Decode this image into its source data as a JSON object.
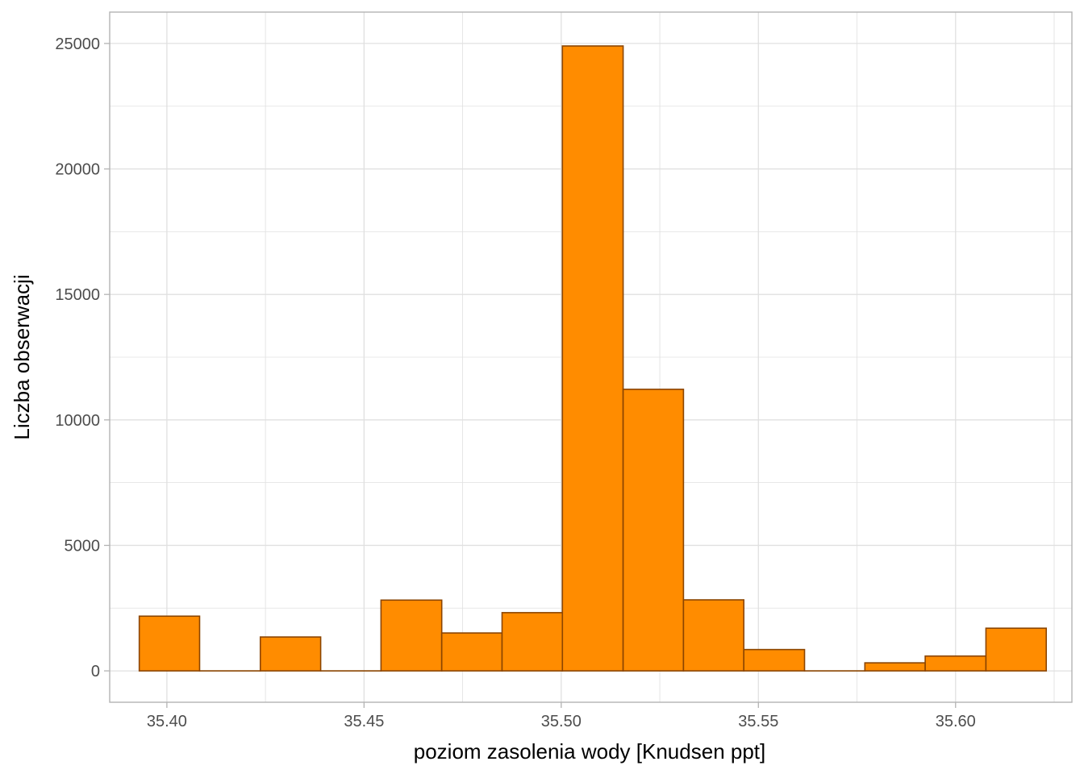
{
  "chart_data": {
    "type": "bar",
    "subtype": "histogram",
    "xlabel": "poziom zasolenia wody [Knudsen ppt]",
    "ylabel": "Liczba obserwacji",
    "xlim": [
      35.3855,
      35.6295
    ],
    "ylim": [
      -1250,
      26250
    ],
    "x_ticks": [
      35.4,
      35.45,
      35.5,
      35.55,
      35.6
    ],
    "x_tick_labels": [
      "35.40",
      "35.45",
      "35.50",
      "35.55",
      "35.60"
    ],
    "y_ticks": [
      0,
      5000,
      10000,
      15000,
      20000,
      25000
    ],
    "y_tick_labels": [
      "0",
      "5000",
      "10000",
      "15000",
      "20000",
      "25000"
    ],
    "grid": true,
    "bins": [
      {
        "x0": 35.393,
        "x1": 35.4083,
        "count": 2180
      },
      {
        "x0": 35.4083,
        "x1": 35.4237,
        "count": 0
      },
      {
        "x0": 35.4237,
        "x1": 35.439,
        "count": 1350
      },
      {
        "x0": 35.439,
        "x1": 35.4543,
        "count": 0
      },
      {
        "x0": 35.4543,
        "x1": 35.4697,
        "count": 2820
      },
      {
        "x0": 35.4697,
        "x1": 35.485,
        "count": 1510
      },
      {
        "x0": 35.485,
        "x1": 35.5003,
        "count": 2320
      },
      {
        "x0": 35.5003,
        "x1": 35.5157,
        "count": 24900
      },
      {
        "x0": 35.5157,
        "x1": 35.531,
        "count": 11220
      },
      {
        "x0": 35.531,
        "x1": 35.5463,
        "count": 2830
      },
      {
        "x0": 35.5463,
        "x1": 35.5617,
        "count": 850
      },
      {
        "x0": 35.5617,
        "x1": 35.577,
        "count": 0
      },
      {
        "x0": 35.577,
        "x1": 35.5923,
        "count": 320
      },
      {
        "x0": 35.5923,
        "x1": 35.6077,
        "count": 590
      },
      {
        "x0": 35.6077,
        "x1": 35.623,
        "count": 1700
      }
    ],
    "colors": {
      "bar_fill": "#ff8c00",
      "bar_stroke": "#8b4500",
      "grid": "#e0e0e0",
      "panel_border": "#b3b3b3",
      "tick": "#4d4d4d"
    }
  }
}
